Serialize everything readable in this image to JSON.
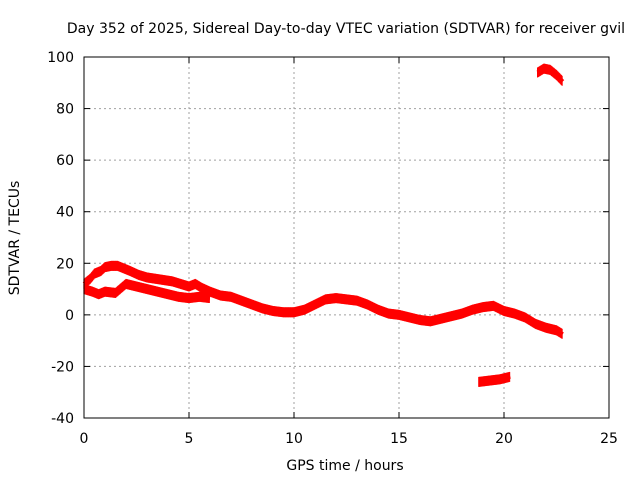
{
  "chart_data": {
    "type": "scatter",
    "title": "Day 352 of 2025, Sidereal Day-to-day VTEC variation (SDTVAR) for receiver gvil",
    "xlabel": "GPS time / hours",
    "ylabel": "SDTVAR / TECUs",
    "xlim": [
      0,
      25
    ],
    "ylim": [
      -40,
      100
    ],
    "xticks": [
      0,
      5,
      10,
      15,
      20,
      25
    ],
    "yticks": [
      -40,
      -20,
      0,
      20,
      40,
      60,
      80,
      100
    ],
    "grid": true,
    "color": "#ff0000",
    "series": [
      {
        "name": "main-trace",
        "points": [
          [
            0.0,
            12
          ],
          [
            0.3,
            14
          ],
          [
            0.5,
            16
          ],
          [
            0.8,
            17
          ],
          [
            1.0,
            18.5
          ],
          [
            1.3,
            19
          ],
          [
            1.6,
            19
          ],
          [
            1.9,
            18
          ],
          [
            2.2,
            17
          ],
          [
            2.6,
            15.5
          ],
          [
            3.0,
            14.5
          ],
          [
            3.4,
            14
          ],
          [
            3.8,
            13.5
          ],
          [
            4.2,
            13
          ],
          [
            4.6,
            12
          ],
          [
            5.0,
            11
          ],
          [
            5.3,
            12
          ],
          [
            5.6,
            10.5
          ],
          [
            6.0,
            9
          ],
          [
            6.5,
            7.5
          ],
          [
            7.0,
            7
          ],
          [
            7.5,
            5.5
          ],
          [
            8.0,
            4
          ],
          [
            8.5,
            2.5
          ],
          [
            9.0,
            1.5
          ],
          [
            9.5,
            1
          ],
          [
            10.0,
            1
          ],
          [
            10.5,
            2
          ],
          [
            11.0,
            4
          ],
          [
            11.5,
            6
          ],
          [
            12.0,
            6.5
          ],
          [
            12.5,
            6
          ],
          [
            13.0,
            5.5
          ],
          [
            13.5,
            4
          ],
          [
            14.0,
            2
          ],
          [
            14.5,
            0.5
          ],
          [
            15.0,
            0
          ],
          [
            15.5,
            -1
          ],
          [
            16.0,
            -2
          ],
          [
            16.5,
            -2.5
          ],
          [
            17.0,
            -1.5
          ],
          [
            17.5,
            -0.5
          ],
          [
            18.0,
            0.5
          ],
          [
            18.5,
            2
          ],
          [
            19.0,
            3
          ],
          [
            19.5,
            3.5
          ],
          [
            20.0,
            1.5
          ],
          [
            20.5,
            0.5
          ],
          [
            21.0,
            -1
          ],
          [
            21.5,
            -3.5
          ],
          [
            22.0,
            -5
          ],
          [
            22.5,
            -6
          ],
          [
            22.8,
            -7.5
          ]
        ]
      },
      {
        "name": "lower-branch",
        "points": [
          [
            0.0,
            10
          ],
          [
            0.4,
            9
          ],
          [
            0.7,
            8
          ],
          [
            1.0,
            9
          ],
          [
            1.5,
            8.5
          ],
          [
            2.0,
            12
          ],
          [
            2.5,
            11
          ],
          [
            3.0,
            10
          ],
          [
            3.5,
            9
          ],
          [
            4.0,
            8
          ],
          [
            4.5,
            7
          ],
          [
            5.0,
            6.5
          ],
          [
            5.5,
            7
          ],
          [
            6.0,
            6.5
          ]
        ]
      },
      {
        "name": "offset-trace",
        "points": [
          [
            18.8,
            -26
          ],
          [
            19.3,
            -25.5
          ],
          [
            19.8,
            -25
          ],
          [
            20.3,
            -24
          ]
        ]
      },
      {
        "name": "high-trace",
        "points": [
          [
            21.6,
            94
          ],
          [
            21.9,
            95.5
          ],
          [
            22.2,
            95
          ],
          [
            22.5,
            93
          ],
          [
            22.8,
            90.5
          ]
        ]
      }
    ]
  }
}
